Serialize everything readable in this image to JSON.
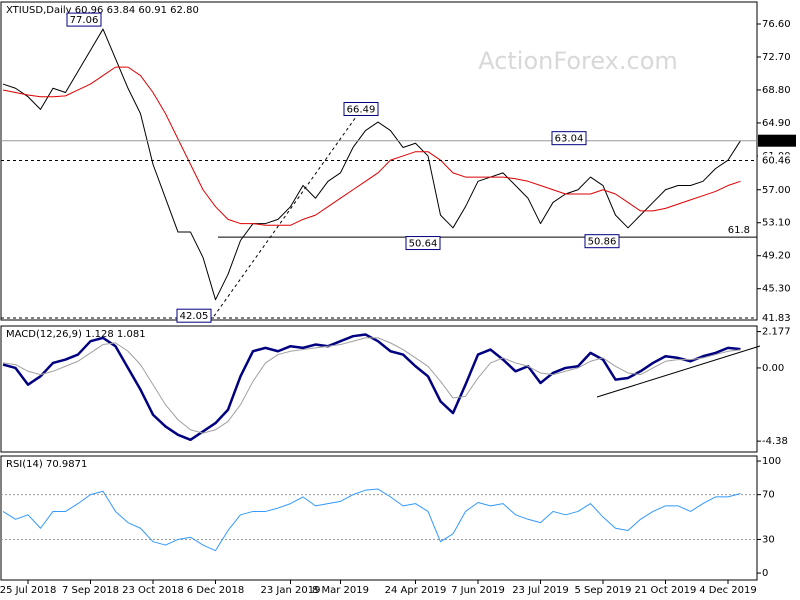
{
  "chart_data": [
    {
      "type": "line",
      "title": "XTIUSD,Daily  60.96 63.84 60.91 62.80",
      "watermark": "ActionForex.com",
      "categories": [
        null,
        null,
        "25 Jul 2018",
        null,
        null,
        null,
        null,
        "7 Sep 2018",
        null,
        null,
        null,
        null,
        "23 Oct 2018",
        null,
        null,
        null,
        null,
        "6 Dec 2018",
        null,
        null,
        null,
        null,
        null,
        "23 Jan 2019",
        null,
        null,
        null,
        "8 Mar 2019",
        null,
        null,
        null,
        null,
        null,
        "24 Apr 2019",
        null,
        null,
        null,
        null,
        "7 Jun 2019",
        null,
        null,
        null,
        null,
        "23 Jul 2019",
        null,
        null,
        null,
        null,
        "5 Sep 2019",
        null,
        null,
        null,
        null,
        "21 Oct 2019",
        null,
        null,
        null,
        null,
        "4 Dec 2019",
        null
      ],
      "series": [
        {
          "color": "#000000",
          "values": [
            69.5,
            69,
            68,
            66.5,
            69,
            68.5,
            71,
            73.5,
            76,
            72.5,
            69,
            66,
            60,
            56,
            52,
            52,
            49,
            44,
            47,
            51,
            53,
            53,
            53.5,
            55,
            57.5,
            56,
            58,
            59,
            62,
            64,
            65,
            64,
            62,
            62.5,
            61,
            54,
            52.5,
            55,
            58,
            58.5,
            59,
            57.5,
            56,
            53,
            55.5,
            56.5,
            57,
            58.5,
            57.5,
            54,
            52.5,
            54,
            55.5,
            57,
            57.5,
            57.5,
            58,
            59.5,
            60.5,
            62.8
          ]
        },
        {
          "color": "#dd0000",
          "values": [
            68.8,
            68.5,
            68.2,
            68,
            68,
            68.1,
            68.8,
            69.5,
            70.5,
            71.5,
            71.5,
            70.5,
            68.5,
            66,
            63,
            60,
            57,
            55,
            53.5,
            53,
            53,
            52.8,
            52.8,
            52.8,
            53.5,
            54,
            55,
            56,
            57,
            58,
            59,
            60.5,
            61,
            61.5,
            61.5,
            60.5,
            59,
            58.5,
            58.5,
            58.5,
            58.5,
            58.3,
            58,
            57.5,
            57,
            56.5,
            56.5,
            56.5,
            57,
            56.5,
            55.5,
            54.5,
            54.5,
            54.8,
            55.3,
            55.8,
            56.3,
            56.8,
            57.5,
            58
          ]
        }
      ],
      "ylim": [
        41.6,
        79.2
      ],
      "yticks": [
        {
          "value": 76.6,
          "label": "76.60"
        },
        {
          "value": 72.7,
          "label": "72.70"
        },
        {
          "value": 68.8,
          "label": "68.80"
        },
        {
          "value": 64.9,
          "label": "64.90"
        },
        {
          "value": 61,
          "label": "61.00"
        },
        {
          "value": 57,
          "label": "57.00"
        },
        {
          "value": 53.1,
          "label": "53.10"
        },
        {
          "value": 49.2,
          "label": "49.20"
        },
        {
          "value": 45.3,
          "label": "45.30"
        }
      ],
      "levels": [
        {
          "value": 62.8,
          "label": "62.80"
        },
        60.46,
        41.83
      ],
      "annotations": [
        77.06,
        42.05,
        66.49,
        50.64,
        63.04,
        50.86
      ],
      "support_level": 51.4,
      "fib_label": "61.8"
    },
    {
      "type": "line",
      "title": "MACD(12,26,9) 1.128 1.081",
      "series": [
        {
          "color": "#000080",
          "values": [
            0.2,
            0,
            -1,
            -0.5,
            0.3,
            0.5,
            0.8,
            1.6,
            1.8,
            1.3,
            0,
            -1.3,
            -2.8,
            -3.5,
            -4,
            -4.3,
            -3.8,
            -3.3,
            -2.5,
            -0.5,
            1,
            1.2,
            1,
            1.3,
            1.2,
            1.4,
            1.3,
            1.6,
            1.9,
            2,
            1.6,
            1,
            0.8,
            0.1,
            -0.5,
            -2,
            -2.7,
            -1,
            0.8,
            1.1,
            0.5,
            -0.2,
            0.1,
            -0.9,
            -0.3,
            0,
            0.1,
            0.9,
            0.5,
            -0.7,
            -0.6,
            -0.2,
            0.3,
            0.7,
            0.6,
            0.4,
            0.7,
            0.9,
            1.2,
            1.128
          ]
        },
        {
          "color": "#a0a0a0",
          "values": [
            0.3,
            0.2,
            -0.2,
            -0.4,
            -0.2,
            0.1,
            0.4,
            0.9,
            1.4,
            1.5,
            1,
            0.2,
            -1,
            -2.2,
            -3.1,
            -3.7,
            -3.9,
            -3.7,
            -3.2,
            -2.2,
            -0.8,
            0.3,
            0.8,
            1,
            1.1,
            1.2,
            1.3,
            1.4,
            1.6,
            1.8,
            1.8,
            1.5,
            1.1,
            0.6,
            0.1,
            -0.8,
            -1.8,
            -1.7,
            -0.6,
            0.3,
            0.6,
            0.3,
            0.1,
            -0.3,
            -0.4,
            -0.2,
            0,
            0.4,
            0.6,
            0.1,
            -0.3,
            -0.4,
            0,
            0.4,
            0.5,
            0.5,
            0.6,
            0.8,
            1,
            1.081
          ]
        }
      ],
      "ylim": [
        -5.03,
        2.51
      ],
      "yticks": [
        2.177,
        {
          "value": 0,
          "label": "0.00"
        },
        -4.38
      ]
    },
    {
      "type": "line",
      "title": "RSI(14) 70.9871",
      "series": [
        {
          "color": "#3399ff",
          "values": [
            55,
            48,
            52,
            40,
            55,
            55,
            62,
            70,
            73,
            55,
            45,
            40,
            28,
            25,
            30,
            32,
            25,
            20,
            38,
            52,
            55,
            55,
            58,
            62,
            68,
            60,
            62,
            64,
            70,
            74,
            75,
            68,
            60,
            62,
            55,
            28,
            35,
            55,
            63,
            60,
            62,
            52,
            48,
            45,
            55,
            52,
            55,
            62,
            50,
            40,
            38,
            48,
            55,
            60,
            60,
            55,
            62,
            68,
            68,
            70.9871
          ]
        }
      ],
      "ylim": [
        -6.2,
        104.5
      ],
      "yticks": [
        100,
        70,
        30,
        0
      ],
      "dotted_levels": [
        70,
        30
      ]
    }
  ]
}
